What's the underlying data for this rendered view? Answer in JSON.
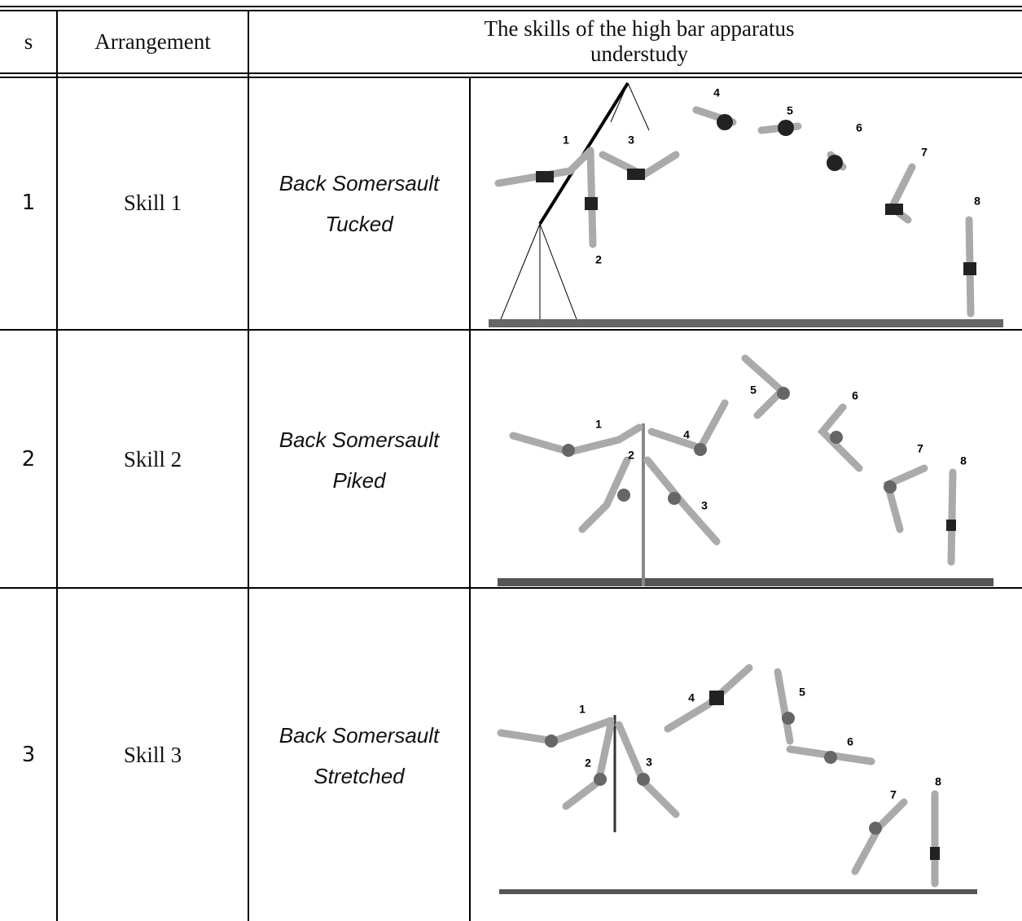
{
  "header": {
    "columns": [
      "s",
      "Arrangement",
      "The skills of the high bar apparatus understudy"
    ]
  },
  "table": {
    "rows": [
      {
        "s": "1",
        "arrangement": "Skill 1",
        "skill": [
          "Back Somersault",
          "Tucked"
        ],
        "figure_labels": [
          "1",
          "2",
          "3",
          "4",
          "5",
          "6",
          "7",
          "8"
        ]
      },
      {
        "s": "2",
        "arrangement": "Skill 2",
        "skill": [
          "Back Somersault",
          "Piked"
        ],
        "figure_labels": [
          "1",
          "2",
          "3",
          "4",
          "5",
          "6",
          "7",
          "8"
        ]
      },
      {
        "s": "3",
        "arrangement": "Skill 3",
        "skill": [
          "Back Somersault",
          "Stretched"
        ],
        "figure_labels": [
          "1",
          "2",
          "3",
          "4",
          "5",
          "6",
          "7",
          "8"
        ]
      }
    ]
  }
}
